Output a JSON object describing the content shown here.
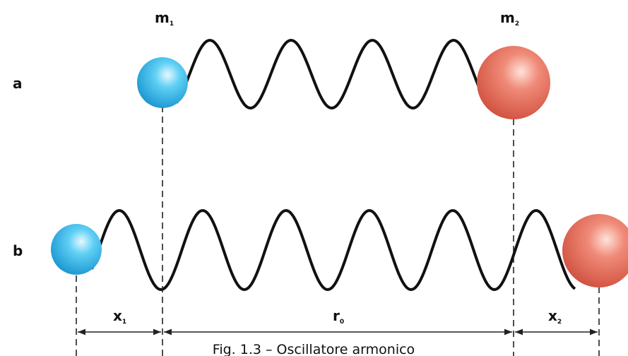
{
  "row_labels": {
    "a": "a",
    "b": "b"
  },
  "masses": {
    "m1": {
      "base": "m",
      "sub": "1"
    },
    "m2": {
      "base": "m",
      "sub": "2"
    }
  },
  "distances": {
    "x1": {
      "base": "x",
      "sub": "1"
    },
    "r0": {
      "base": "r",
      "sub": "0"
    },
    "x2": {
      "base": "x",
      "sub": "2"
    }
  },
  "caption": "Fig. 1.3 – Oscillatore armonico"
}
